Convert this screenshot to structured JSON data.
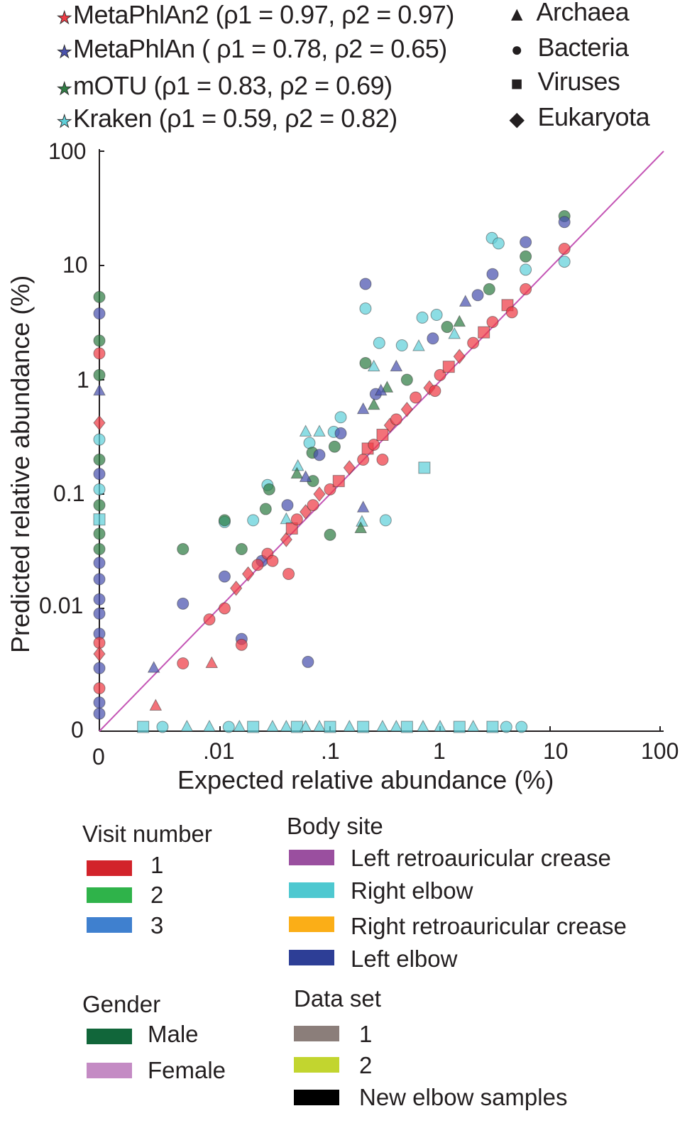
{
  "chart_data": {
    "type": "scatter",
    "xlabel": "Expected relative abundance (%)",
    "ylabel": "Predicted relative abundance (%)",
    "x_scale": "log with zero",
    "y_scale": "log with zero",
    "xlim": [
      0,
      100
    ],
    "ylim": [
      0,
      100
    ],
    "x_ticks": [
      "0",
      ".01",
      ".1",
      "1",
      "10",
      "100"
    ],
    "y_ticks": [
      "100",
      "10",
      "1",
      "0.1",
      "0.01",
      "0"
    ],
    "diagonal": "y = x",
    "diagonal_color": "#c455b5",
    "tools_legend": [
      {
        "key": "m2",
        "label": "MetaPhlAn2 (ρ1 = 0.97, ρ2 = 0.97)",
        "color": "#ee3b45"
      },
      {
        "key": "m1",
        "label": "MetaPhlAn ( ρ1 = 0.78, ρ2 = 0.65)",
        "color": "#4a52ae"
      },
      {
        "key": "mo",
        "label": "mOTU (ρ1 = 0.83, ρ2 = 0.69)",
        "color": "#2f7d44"
      },
      {
        "key": "kr",
        "label": "Kraken (ρ1 = 0.59, ρ2 = 0.82)",
        "color": "#5fd0da"
      }
    ],
    "shapes_legend": [
      {
        "key": "a",
        "label": "Archaea",
        "glyph": "▲"
      },
      {
        "key": "b",
        "label": "Bacteria",
        "glyph": "●"
      },
      {
        "key": "v",
        "label": "Viruses",
        "glyph": "■"
      },
      {
        "key": "e",
        "label": "Eukaryota",
        "glyph": "◆"
      }
    ],
    "points": [
      [
        "m2",
        0.008,
        0.008,
        "b"
      ],
      [
        "m2",
        0.011,
        0.01,
        "b"
      ],
      [
        "m2",
        0.014,
        0.015,
        "e"
      ],
      [
        "m2",
        0.018,
        0.02,
        "e"
      ],
      [
        "m2",
        0.022,
        0.024,
        "b"
      ],
      [
        "m2",
        0.027,
        0.03,
        "b"
      ],
      [
        "m2",
        0.03,
        0.026,
        "b"
      ],
      [
        "m2",
        0.04,
        0.04,
        "e"
      ],
      [
        "m2",
        0.045,
        0.05,
        "v"
      ],
      [
        "m2",
        0.05,
        0.06,
        "b"
      ],
      [
        "m2",
        0.06,
        0.07,
        "e"
      ],
      [
        "m2",
        0.07,
        0.08,
        "b"
      ],
      [
        "m2",
        0.08,
        0.1,
        "e"
      ],
      [
        "m2",
        0.1,
        0.11,
        "b"
      ],
      [
        "m2",
        0.12,
        0.13,
        "v"
      ],
      [
        "m2",
        0.15,
        0.17,
        "e"
      ],
      [
        "m2",
        0.2,
        0.2,
        "b"
      ],
      [
        "m2",
        0.22,
        0.25,
        "v"
      ],
      [
        "m2",
        0.25,
        0.27,
        "b"
      ],
      [
        "m2",
        0.3,
        0.33,
        "v"
      ],
      [
        "m2",
        0.35,
        0.4,
        "e"
      ],
      [
        "m2",
        0.4,
        0.45,
        "b"
      ],
      [
        "m2",
        0.5,
        0.55,
        "e"
      ],
      [
        "m2",
        0.6,
        0.7,
        "b"
      ],
      [
        "m2",
        0.8,
        0.85,
        "e"
      ],
      [
        "m2",
        1.0,
        1.1,
        "b"
      ],
      [
        "m2",
        1.2,
        1.3,
        "v"
      ],
      [
        "m2",
        1.5,
        1.6,
        "e"
      ],
      [
        "m2",
        2.0,
        2.1,
        "b"
      ],
      [
        "m2",
        2.5,
        2.6,
        "v"
      ],
      [
        "m2",
        3.0,
        3.2,
        "b"
      ],
      [
        "m2",
        4.1,
        4.5,
        "v"
      ],
      [
        "m2",
        4.5,
        3.9,
        "b"
      ],
      [
        "m2",
        6.0,
        6.2,
        "b"
      ],
      [
        "m2",
        13.5,
        14,
        "b"
      ],
      [
        "m2",
        0.0046,
        0.0033,
        "b"
      ],
      [
        "m2",
        0.0157,
        0.0048,
        "b"
      ],
      [
        "m2",
        0.042,
        0.02,
        "b"
      ],
      [
        "m2",
        0.0084,
        0.0033,
        "a"
      ],
      [
        "m2",
        0.0026,
        0.0014,
        "a"
      ],
      [
        "m2",
        0.3,
        0.2,
        "b"
      ],
      [
        "m2",
        0.9,
        0.8,
        "b"
      ],
      [
        "m1",
        0.21,
        6.9,
        "b"
      ],
      [
        "m1",
        6.0,
        16,
        "b"
      ],
      [
        "m1",
        13.5,
        24,
        "b"
      ],
      [
        "m1",
        3.0,
        8.4,
        "b"
      ],
      [
        "m1",
        0.0046,
        0.011,
        "b"
      ],
      [
        "m1",
        0.011,
        0.019,
        "b"
      ],
      [
        "m1",
        0.0157,
        0.0054,
        "b"
      ],
      [
        "m1",
        0.063,
        0.0034,
        "b"
      ],
      [
        "m1",
        0.0025,
        0.003,
        "a"
      ],
      [
        "m1",
        0.2,
        0.076,
        "a"
      ],
      [
        "m1",
        0.86,
        2.3,
        "b"
      ],
      [
        "m1",
        0.08,
        0.22,
        "b"
      ],
      [
        "m1",
        0.125,
        0.34,
        "b"
      ],
      [
        "m1",
        0.26,
        0.75,
        "b"
      ],
      [
        "m1",
        0.29,
        0.8,
        "a"
      ],
      [
        "m1",
        1.7,
        4.8,
        "a"
      ],
      [
        "m1",
        0.024,
        0.026,
        "b"
      ],
      [
        "m1",
        0.041,
        0.08,
        "b"
      ],
      [
        "m1",
        0.06,
        0.14,
        "a"
      ],
      [
        "m1",
        0.2,
        0.55,
        "a"
      ],
      [
        "m1",
        0.4,
        1.3,
        "a"
      ],
      [
        "m1",
        2.2,
        5.5,
        "b"
      ],
      [
        "mo",
        13.5,
        27,
        "b"
      ],
      [
        "mo",
        6.0,
        12,
        "b"
      ],
      [
        "mo",
        2.8,
        6.2,
        "b"
      ],
      [
        "mo",
        0.21,
        1.4,
        "b"
      ],
      [
        "mo",
        0.0157,
        0.033,
        "b"
      ],
      [
        "mo",
        0.0046,
        0.033,
        "b"
      ],
      [
        "mo",
        0.1,
        0.044,
        "b"
      ],
      [
        "mo",
        0.011,
        0.059,
        "b"
      ],
      [
        "mo",
        0.026,
        0.074,
        "b"
      ],
      [
        "mo",
        0.069,
        0.23,
        "b"
      ],
      [
        "mo",
        0.5,
        1.0,
        "b"
      ],
      [
        "mo",
        1.16,
        2.9,
        "b"
      ],
      [
        "mo",
        0.19,
        0.05,
        "a"
      ],
      [
        "mo",
        0.33,
        0.85,
        "a"
      ],
      [
        "mo",
        0.028,
        0.11,
        "b"
      ],
      [
        "mo",
        0.11,
        0.26,
        "b"
      ],
      [
        "mo",
        0.05,
        0.15,
        "a"
      ],
      [
        "mo",
        1.5,
        3.2,
        "a"
      ],
      [
        "mo",
        0.25,
        0.6,
        "a"
      ],
      [
        "mo",
        0.07,
        0.13,
        "b"
      ],
      [
        "kr",
        2.96,
        17.4,
        "b"
      ],
      [
        "kr",
        3.4,
        15.6,
        "b"
      ],
      [
        "kr",
        6.0,
        9.2,
        "b"
      ],
      [
        "kr",
        13.5,
        10.8,
        "b"
      ],
      [
        "kr",
        0.21,
        4.2,
        "b"
      ],
      [
        "kr",
        0.28,
        2.1,
        "b"
      ],
      [
        "kr",
        0.45,
        2.0,
        "b"
      ],
      [
        "kr",
        0.69,
        3.5,
        "b"
      ],
      [
        "kr",
        0.93,
        3.7,
        "b"
      ],
      [
        "kr",
        0.72,
        0.17,
        "v"
      ],
      [
        "kr",
        0.32,
        0.059,
        "b"
      ],
      [
        "kr",
        0.027,
        0.12,
        "b"
      ],
      [
        "kr",
        0.011,
        0.057,
        "b"
      ],
      [
        "kr",
        0.02,
        0.059,
        "b"
      ],
      [
        "kr",
        0.125,
        0.47,
        "b"
      ],
      [
        "kr",
        0.108,
        0.35,
        "b"
      ],
      [
        "kr",
        0.06,
        0.35,
        "a"
      ],
      [
        "kr",
        0.08,
        0.35,
        "a"
      ],
      [
        "kr",
        0.051,
        0.175,
        "a"
      ],
      [
        "kr",
        0.195,
        0.057,
        "a"
      ],
      [
        "kr",
        0.25,
        1.3,
        "a"
      ],
      [
        "kr",
        0.64,
        1.96,
        "a"
      ],
      [
        "kr",
        1.35,
        2.5,
        "a"
      ],
      [
        "kr",
        0.04,
        0.06,
        "a"
      ],
      [
        "kr",
        0.065,
        0.28,
        "b"
      ],
      [
        "kr",
        0.002,
        0,
        "v"
      ],
      [
        "kr",
        0.003,
        0,
        "b"
      ],
      [
        "kr",
        0.005,
        0,
        "a"
      ],
      [
        "kr",
        0.008,
        0,
        "a"
      ],
      [
        "kr",
        0.012,
        0,
        "b"
      ],
      [
        "kr",
        0.015,
        0,
        "a"
      ],
      [
        "kr",
        0.02,
        0,
        "v"
      ],
      [
        "kr",
        0.03,
        0,
        "a"
      ],
      [
        "kr",
        0.04,
        0,
        "a"
      ],
      [
        "kr",
        0.05,
        0,
        "v"
      ],
      [
        "kr",
        0.06,
        0,
        "a"
      ],
      [
        "kr",
        0.08,
        0,
        "a"
      ],
      [
        "kr",
        0.1,
        0,
        "v"
      ],
      [
        "kr",
        0.15,
        0,
        "a"
      ],
      [
        "kr",
        0.2,
        0,
        "v"
      ],
      [
        "kr",
        0.3,
        0,
        "a"
      ],
      [
        "kr",
        0.4,
        0,
        "a"
      ],
      [
        "kr",
        0.5,
        0,
        "v"
      ],
      [
        "kr",
        0.7,
        0,
        "a"
      ],
      [
        "kr",
        1.0,
        0,
        "a"
      ],
      [
        "kr",
        1.5,
        0,
        "v"
      ],
      [
        "kr",
        2.0,
        0,
        "a"
      ],
      [
        "kr",
        3.0,
        0,
        "v"
      ],
      [
        "kr",
        4.0,
        0,
        "b"
      ],
      [
        "kr",
        5.5,
        0,
        "b"
      ],
      [
        "mo",
        0,
        5.3,
        "b"
      ],
      [
        "m1",
        0,
        3.8,
        "b"
      ],
      [
        "mo",
        0,
        2.2,
        "b"
      ],
      [
        "m2",
        0,
        1.7,
        "b"
      ],
      [
        "mo",
        0,
        1.1,
        "b"
      ],
      [
        "m1",
        0,
        0.8,
        "a"
      ],
      [
        "m2",
        0,
        0.42,
        "e"
      ],
      [
        "kr",
        0,
        0.3,
        "b"
      ],
      [
        "mo",
        0,
        0.2,
        "b"
      ],
      [
        "m1",
        0,
        0.15,
        "b"
      ],
      [
        "kr",
        0,
        0.11,
        "b"
      ],
      [
        "mo",
        0,
        0.08,
        "b"
      ],
      [
        "kr",
        0,
        0.06,
        "v"
      ],
      [
        "mo",
        0,
        0.045,
        "b"
      ],
      [
        "mo",
        0,
        0.033,
        "b"
      ],
      [
        "m1",
        0,
        0.025,
        "b"
      ],
      [
        "m1",
        0,
        0.018,
        "b"
      ],
      [
        "m1",
        0,
        0.012,
        "b"
      ],
      [
        "m1",
        0,
        0.009,
        "b"
      ],
      [
        "m1",
        0,
        0.006,
        "b"
      ],
      [
        "m2",
        0,
        0.005,
        "b"
      ],
      [
        "m2",
        0,
        0.004,
        "e"
      ],
      [
        "m1",
        0,
        0.003,
        "b"
      ],
      [
        "m2",
        0,
        0.002,
        "b"
      ],
      [
        "m1",
        0,
        0.0015,
        "b"
      ],
      [
        "m1",
        0,
        0.0012,
        "b"
      ]
    ]
  },
  "legends": {
    "visit": {
      "title": "Visit number",
      "items": [
        {
          "label": "1",
          "color": "#d2232a"
        },
        {
          "label": "2",
          "color": "#2fb34a"
        },
        {
          "label": "3",
          "color": "#3f80cf"
        }
      ]
    },
    "body_site": {
      "title": "Body site",
      "items": [
        {
          "label": "Left retroauricular crease",
          "color": "#9a4f9f"
        },
        {
          "label": "Right elbow",
          "color": "#4ec8d0"
        },
        {
          "label": "Right retroauricular crease",
          "color": "#fbae17"
        },
        {
          "label": "Left elbow",
          "color": "#2d3e96"
        }
      ]
    },
    "gender": {
      "title": "Gender",
      "items": [
        {
          "label": "Male",
          "color": "#11663a"
        },
        {
          "label": "Female",
          "color": "#c48bc4"
        }
      ]
    },
    "data_set": {
      "title": "Data set",
      "items": [
        {
          "label": "1",
          "color": "#8b7e7a"
        },
        {
          "label": "2",
          "color": "#c2d52f"
        },
        {
          "label": "New elbow samples",
          "color": "#000000"
        }
      ]
    }
  }
}
